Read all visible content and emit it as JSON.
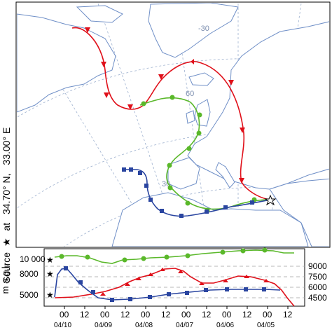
{
  "side_label": {
    "source_word": "Source",
    "at_word": "at",
    "lat": "34.70° N,",
    "lon": "33.00° E"
  },
  "map": {
    "grid_labels": [
      "-30",
      "60",
      "30"
    ],
    "source_marker": "star-icon"
  },
  "height_panel": {
    "ylabel": "m a.g.l.",
    "left_ticks": [
      "10 000",
      "8000",
      "5000"
    ],
    "right_ticks": [
      "9000",
      "7500",
      "6000",
      "4500"
    ],
    "hour_labels": [
      "00",
      "12",
      "00",
      "12",
      "00",
      "12",
      "00",
      "12",
      "00",
      "12",
      "00",
      "12"
    ],
    "date_labels": [
      "04/10",
      "04/09",
      "04/08",
      "04/07",
      "04/06",
      "04/05"
    ]
  },
  "colors": {
    "red": "#e0101a",
    "green": "#5ab82a",
    "blue": "#2a45a0",
    "land": "#ffffff",
    "coast": "#6f8fc7",
    "grid": "#7d8fb0"
  }
}
